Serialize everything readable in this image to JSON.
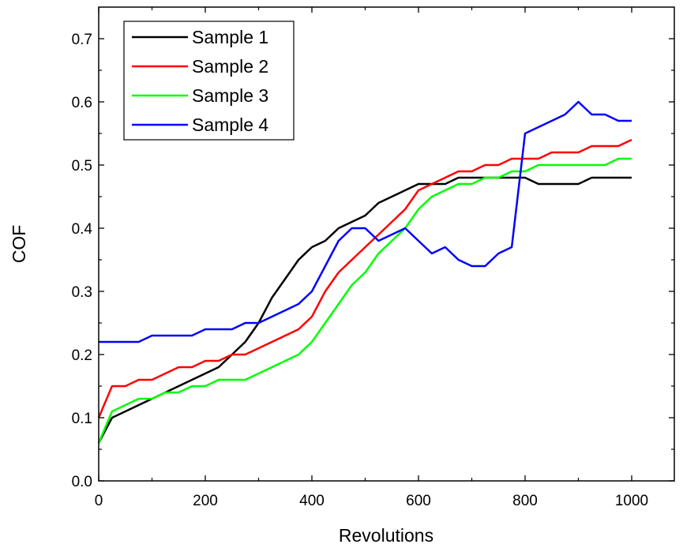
{
  "chart_data": {
    "type": "line",
    "xlabel": "Revolutions",
    "ylabel": "COF",
    "xlim": [
      0,
      1080
    ],
    "ylim": [
      0,
      0.75
    ],
    "x_ticks": [
      0,
      200,
      400,
      600,
      800,
      1000
    ],
    "x_tick_labels": [
      "0",
      "200",
      "400",
      "600",
      "800",
      "1000"
    ],
    "y_ticks": [
      0.0,
      0.1,
      0.2,
      0.3,
      0.4,
      0.5,
      0.6,
      0.7
    ],
    "y_tick_labels": [
      "0.0",
      "0.1",
      "0.2",
      "0.3",
      "0.4",
      "0.5",
      "0.6",
      "0.7"
    ],
    "grid": false,
    "legend_position": "top-left",
    "x": [
      0,
      25,
      50,
      75,
      100,
      125,
      150,
      175,
      200,
      225,
      250,
      275,
      300,
      325,
      350,
      375,
      400,
      425,
      450,
      475,
      500,
      525,
      550,
      575,
      600,
      625,
      650,
      675,
      700,
      725,
      750,
      775,
      800,
      825,
      850,
      875,
      900,
      925,
      950,
      975,
      1000
    ],
    "series": [
      {
        "name": "Sample 1",
        "color": "#000000",
        "values": [
          0.06,
          0.1,
          0.11,
          0.12,
          0.13,
          0.14,
          0.15,
          0.16,
          0.17,
          0.18,
          0.2,
          0.22,
          0.25,
          0.29,
          0.32,
          0.35,
          0.37,
          0.38,
          0.4,
          0.41,
          0.42,
          0.44,
          0.45,
          0.46,
          0.47,
          0.47,
          0.47,
          0.48,
          0.48,
          0.48,
          0.48,
          0.48,
          0.48,
          0.47,
          0.47,
          0.47,
          0.47,
          0.48,
          0.48,
          0.48,
          0.48
        ]
      },
      {
        "name": "Sample 2",
        "color": "#ff0000",
        "values": [
          0.1,
          0.15,
          0.15,
          0.16,
          0.16,
          0.17,
          0.18,
          0.18,
          0.19,
          0.19,
          0.2,
          0.2,
          0.21,
          0.22,
          0.23,
          0.24,
          0.26,
          0.3,
          0.33,
          0.35,
          0.37,
          0.39,
          0.41,
          0.43,
          0.46,
          0.47,
          0.48,
          0.49,
          0.49,
          0.5,
          0.5,
          0.51,
          0.51,
          0.51,
          0.52,
          0.52,
          0.52,
          0.53,
          0.53,
          0.53,
          0.54
        ]
      },
      {
        "name": "Sample 3",
        "color": "#00ff00",
        "values": [
          0.06,
          0.11,
          0.12,
          0.13,
          0.13,
          0.14,
          0.14,
          0.15,
          0.15,
          0.16,
          0.16,
          0.16,
          0.17,
          0.18,
          0.19,
          0.2,
          0.22,
          0.25,
          0.28,
          0.31,
          0.33,
          0.36,
          0.38,
          0.4,
          0.43,
          0.45,
          0.46,
          0.47,
          0.47,
          0.48,
          0.48,
          0.49,
          0.49,
          0.5,
          0.5,
          0.5,
          0.5,
          0.5,
          0.5,
          0.51,
          0.51
        ]
      },
      {
        "name": "Sample 4",
        "color": "#0000ff",
        "values": [
          0.22,
          0.22,
          0.22,
          0.22,
          0.23,
          0.23,
          0.23,
          0.23,
          0.24,
          0.24,
          0.24,
          0.25,
          0.25,
          0.26,
          0.27,
          0.28,
          0.3,
          0.34,
          0.38,
          0.4,
          0.4,
          0.38,
          0.39,
          0.4,
          0.38,
          0.36,
          0.37,
          0.35,
          0.34,
          0.34,
          0.36,
          0.37,
          0.55,
          0.56,
          0.57,
          0.58,
          0.6,
          0.58,
          0.58,
          0.57,
          0.57
        ]
      }
    ]
  }
}
